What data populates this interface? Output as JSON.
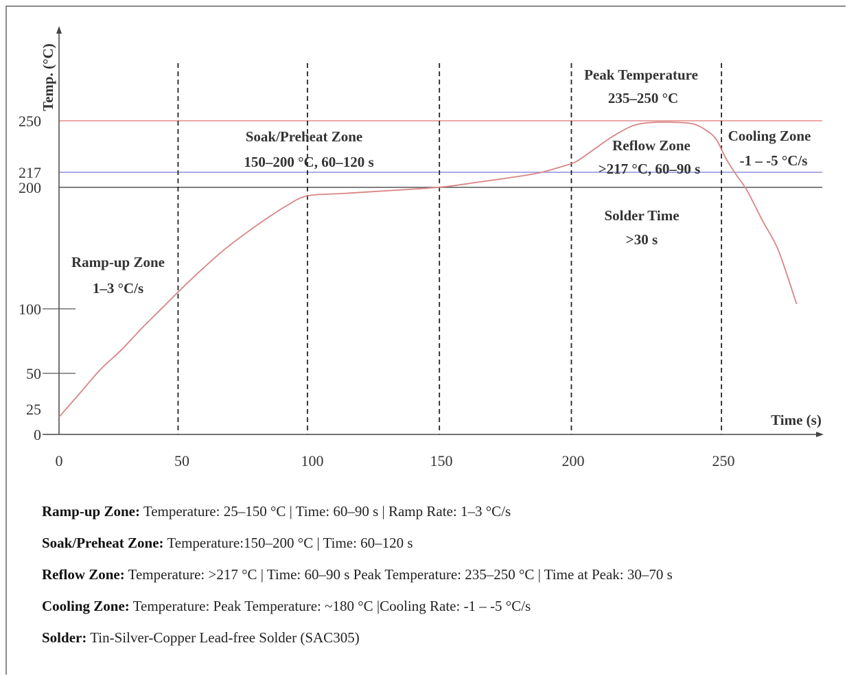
{
  "chart_data": {
    "type": "line",
    "xlabel": "Time (s)",
    "ylabel": "Temp. (°C)",
    "xlim": [
      0,
      290
    ],
    "ylim": [
      0,
      250
    ],
    "x_ticks": [
      0,
      50,
      100,
      150,
      200,
      250
    ],
    "y_ticks": [
      0,
      25,
      50,
      100,
      200,
      217,
      250
    ],
    "y_tick_marks": [
      50,
      100
    ],
    "grid": false,
    "vertical_dashed_lines_x": [
      46,
      96,
      147,
      198,
      256
    ],
    "reference_lines": [
      {
        "y": 250,
        "color": "#e08a8a"
      },
      {
        "y": 217,
        "color": "#8e8ee0"
      },
      {
        "y": 200,
        "color": "#555555"
      }
    ],
    "curve_color": "#d98484",
    "series": [
      {
        "x": [
          0,
          8,
          16,
          24,
          32,
          40,
          48,
          56,
          64,
          72,
          80,
          88,
          96,
          110,
          125,
          140,
          150,
          160,
          172,
          185,
          195,
          200,
          207,
          214,
          222,
          230,
          238,
          245,
          250,
          254,
          258,
          262,
          266,
          272,
          278,
          285
        ],
        "y": [
          17,
          36,
          53,
          68,
          85,
          101,
          118,
          134,
          149,
          162,
          174,
          185,
          193,
          195,
          197,
          199,
          201,
          205,
          210,
          216,
          221,
          224,
          232,
          240,
          247,
          249,
          249,
          248,
          244,
          238,
          225,
          213,
          197,
          172,
          148,
          104
        ]
      }
    ],
    "annotations": [
      {
        "id": "ramp",
        "lines": [
          "Ramp-up Zone",
          "1–3 °C/s"
        ]
      },
      {
        "id": "soak",
        "lines": [
          "Soak/Preheat Zone",
          "150–200 °C, 60–120 s"
        ]
      },
      {
        "id": "peak",
        "lines": [
          "Peak Temperature",
          "235–250 °C"
        ]
      },
      {
        "id": "reflow",
        "lines": [
          "Reflow Zone",
          ">217 °C, 60–90 s"
        ]
      },
      {
        "id": "solder",
        "lines": [
          "Solder Time",
          ">30 s"
        ]
      },
      {
        "id": "cooling",
        "lines": [
          "Cooling Zone",
          "-1 – -5 °C/s"
        ]
      }
    ]
  },
  "notes": [
    {
      "label": "Ramp-up Zone:",
      "text": "Temperature: 25–150 °C | Time: 60–90 s | Ramp Rate: 1–3 °C/s"
    },
    {
      "label": "Soak/Preheat Zone:",
      "text": "Temperature:150–200 °C | Time: 60–120 s"
    },
    {
      "label": "Reflow Zone:",
      "text": "Temperature: >217 °C | Time: 60–90 s Peak Temperature: 235–250 °C | Time at Peak: 30–70 s"
    },
    {
      "label": "Cooling Zone:",
      "text": "Temperature: Peak Temperature: ~180 °C |Cooling Rate: -1 – -5 °C/s"
    },
    {
      "label": "Solder:",
      "text": "Tin-Silver-Copper Lead-free Solder (SAC305)"
    }
  ]
}
